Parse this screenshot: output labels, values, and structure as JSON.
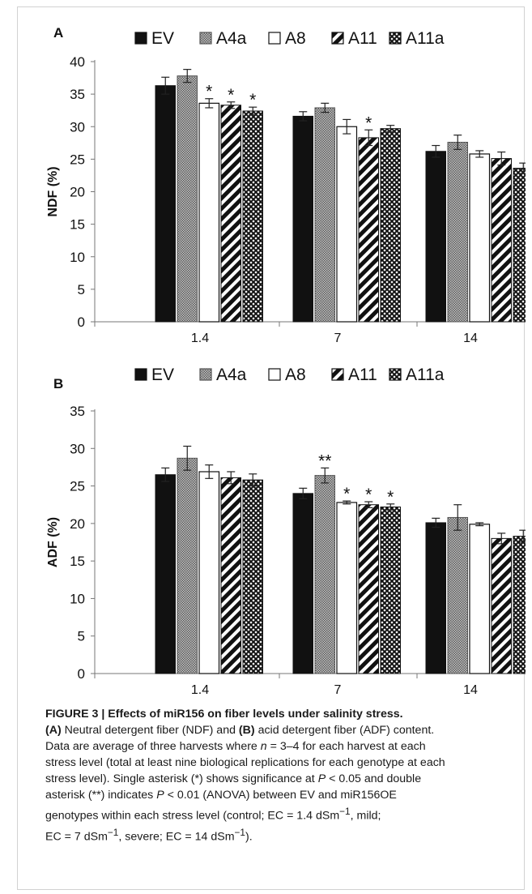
{
  "chart_data": [
    {
      "type": "bar",
      "panel_label": "A",
      "ylabel": "NDF (%)",
      "categories": [
        "1.4",
        "7",
        "14"
      ],
      "yticks": [
        0,
        5,
        10,
        15,
        20,
        25,
        30,
        35,
        40
      ],
      "ylim": [
        0,
        40
      ],
      "series": [
        {
          "name": "EV",
          "values": [
            36.3,
            31.6,
            26.2
          ],
          "errors": [
            1.3,
            0.7,
            0.9
          ]
        },
        {
          "name": "A4a",
          "values": [
            37.8,
            32.9,
            27.6
          ],
          "errors": [
            1.0,
            0.7,
            1.1
          ]
        },
        {
          "name": "A8",
          "values": [
            33.6,
            30.0,
            25.8
          ],
          "errors": [
            0.7,
            1.1,
            0.5
          ]
        },
        {
          "name": "A11",
          "values": [
            33.3,
            28.3,
            25.1
          ],
          "errors": [
            0.5,
            1.2,
            1.0
          ]
        },
        {
          "name": "A11a",
          "values": [
            32.4,
            29.7,
            23.6
          ],
          "errors": [
            0.6,
            0.5,
            0.8
          ]
        }
      ],
      "annotations": [
        {
          "category": "1.4",
          "series": "A8",
          "text": "*"
        },
        {
          "category": "1.4",
          "series": "A11",
          "text": "*"
        },
        {
          "category": "1.4",
          "series": "A11a",
          "text": "*"
        },
        {
          "category": "7",
          "series": "A11",
          "text": "*"
        }
      ],
      "legend_position": "top"
    },
    {
      "type": "bar",
      "panel_label": "B",
      "ylabel": "ADF (%)",
      "categories": [
        "1.4",
        "7",
        "14"
      ],
      "yticks": [
        0,
        5,
        10,
        15,
        20,
        25,
        30,
        35
      ],
      "ylim": [
        0,
        35
      ],
      "series": [
        {
          "name": "EV",
          "values": [
            26.5,
            24.0,
            20.1
          ],
          "errors": [
            0.9,
            0.7,
            0.6
          ]
        },
        {
          "name": "A4a",
          "values": [
            28.7,
            26.4,
            20.8
          ],
          "errors": [
            1.6,
            1.0,
            1.7
          ]
        },
        {
          "name": "A8",
          "values": [
            26.9,
            22.8,
            19.9
          ],
          "errors": [
            0.9,
            0.2,
            0.2
          ]
        },
        {
          "name": "A11",
          "values": [
            26.1,
            22.5,
            18.0
          ],
          "errors": [
            0.8,
            0.4,
            0.7
          ]
        },
        {
          "name": "A11a",
          "values": [
            25.8,
            22.2,
            18.3
          ],
          "errors": [
            0.8,
            0.4,
            0.8
          ]
        }
      ],
      "annotations": [
        {
          "category": "7",
          "series": "A4a",
          "text": "**"
        },
        {
          "category": "7",
          "series": "A8",
          "text": "*"
        },
        {
          "category": "7",
          "series": "A11",
          "text": "*"
        },
        {
          "category": "7",
          "series": "A11a",
          "text": "*"
        }
      ],
      "legend_position": "top"
    }
  ],
  "caption": {
    "title": "FIGURE 3 | Effects of miR156 on fiber levels under salinity stress.",
    "line1": {
      "a": "(A)",
      "b": " Neutral detergent fiber (NDF) and ",
      "c": "(B)",
      "d": " acid detergent fiber (ADF) content."
    },
    "line2": {
      "a": "Data are average of three harvests where ",
      "n": "n",
      "b": " = 3–4 for each harvest at each"
    },
    "line3": "stress level (total at least nine biological replications for each genotype at each",
    "line4": {
      "a": "stress level). Single asterisk (*) shows significance at ",
      "p": "P",
      "b": " < 0.05 and double"
    },
    "line5": {
      "a": "asterisk (**) indicates ",
      "p": "P",
      "b": " < 0.01 (ANOVA) between EV and miR156OE"
    },
    "line6": {
      "a": "genotypes within each stress level (control; EC = 1.4 dSm",
      "s1": "−1",
      "b": ", mild;"
    },
    "line7": {
      "a": "EC = 7 dSm",
      "s1": "−1",
      "b": ", severe; EC = 14 dSm",
      "s2": "−1",
      "c": ")."
    }
  },
  "colors": {
    "ev": "#111111",
    "a4a": "#9a9a9a",
    "a8": "#ffffff",
    "a11": "#111111",
    "a11a": "#333333"
  }
}
